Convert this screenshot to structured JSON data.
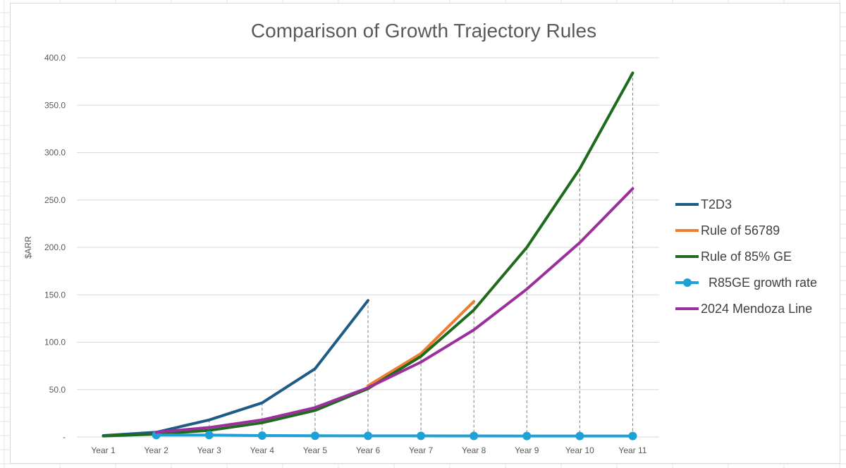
{
  "chart_data": {
    "type": "line",
    "title": "Comparison of Growth Trajectory Rules",
    "xlabel": "",
    "ylabel": "$ARR",
    "categories": [
      "Year 1",
      "Year 2",
      "Year 3",
      "Year 4",
      "Year 5",
      "Year 6",
      "Year 7",
      "Year 8",
      "Year 9",
      "Year 10",
      "Year 11"
    ],
    "ylim": [
      0,
      400
    ],
    "yticks": [
      0,
      50,
      100,
      150,
      200,
      250,
      300,
      350,
      400
    ],
    "ytick_labels": [
      "-",
      "50.0",
      "100.0",
      "150.0",
      "200.0",
      "250.0",
      "300.0",
      "350.0",
      "400.0"
    ],
    "grid": true,
    "drop_lines": true,
    "legend_position": "right",
    "series": [
      {
        "name": "T2D3",
        "color": "#1f5c85",
        "markers": false,
        "values": [
          1.5,
          5,
          18,
          36,
          72,
          144,
          null,
          null,
          null,
          null,
          null
        ]
      },
      {
        "name": "Rule of 56789",
        "color": "#ed7d31",
        "markers": false,
        "values": [
          null,
          null,
          null,
          null,
          null,
          54,
          88,
          143,
          null,
          null,
          null
        ]
      },
      {
        "name": "Rule of 85% GE",
        "color": "#1e6b1e",
        "markers": false,
        "values": [
          1,
          3,
          7,
          15,
          28,
          51,
          85,
          134,
          200,
          283,
          384
        ]
      },
      {
        "name": "R85GE growth rate",
        "color": "#1ea1d6",
        "markers": true,
        "values": [
          null,
          2,
          2,
          1.5,
          1.3,
          1.2,
          1.2,
          1.1,
          1.0,
          1.0,
          1.0
        ]
      },
      {
        "name": "2024 Mendoza Line",
        "color": "#9b2f9b",
        "markers": false,
        "values": [
          null,
          5,
          10,
          18,
          31,
          52,
          79,
          113,
          156,
          205,
          262
        ]
      }
    ]
  }
}
